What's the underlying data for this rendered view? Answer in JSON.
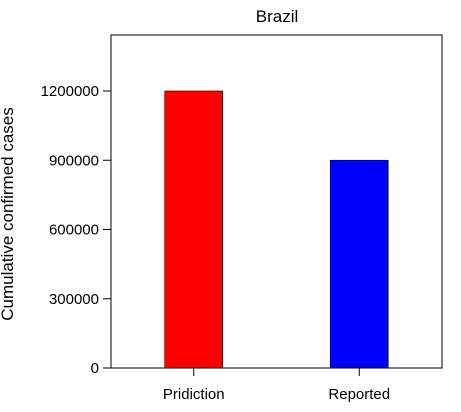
{
  "chart_data": {
    "type": "bar",
    "title": "Brazil",
    "xlabel": "",
    "ylabel": "Cumulative confirmed cases",
    "categories": [
      "Pridiction",
      "Reported"
    ],
    "values": [
      1200000,
      900000
    ],
    "colors": [
      "#ff0000",
      "#0000ff"
    ],
    "ylim": [
      0,
      1400000
    ],
    "yticks": [
      0,
      300000,
      600000,
      900000,
      1200000
    ],
    "ytick_labels": [
      "0",
      "300000",
      "600000",
      "900000",
      "1200000"
    ],
    "grid": false,
    "legend": "none"
  }
}
